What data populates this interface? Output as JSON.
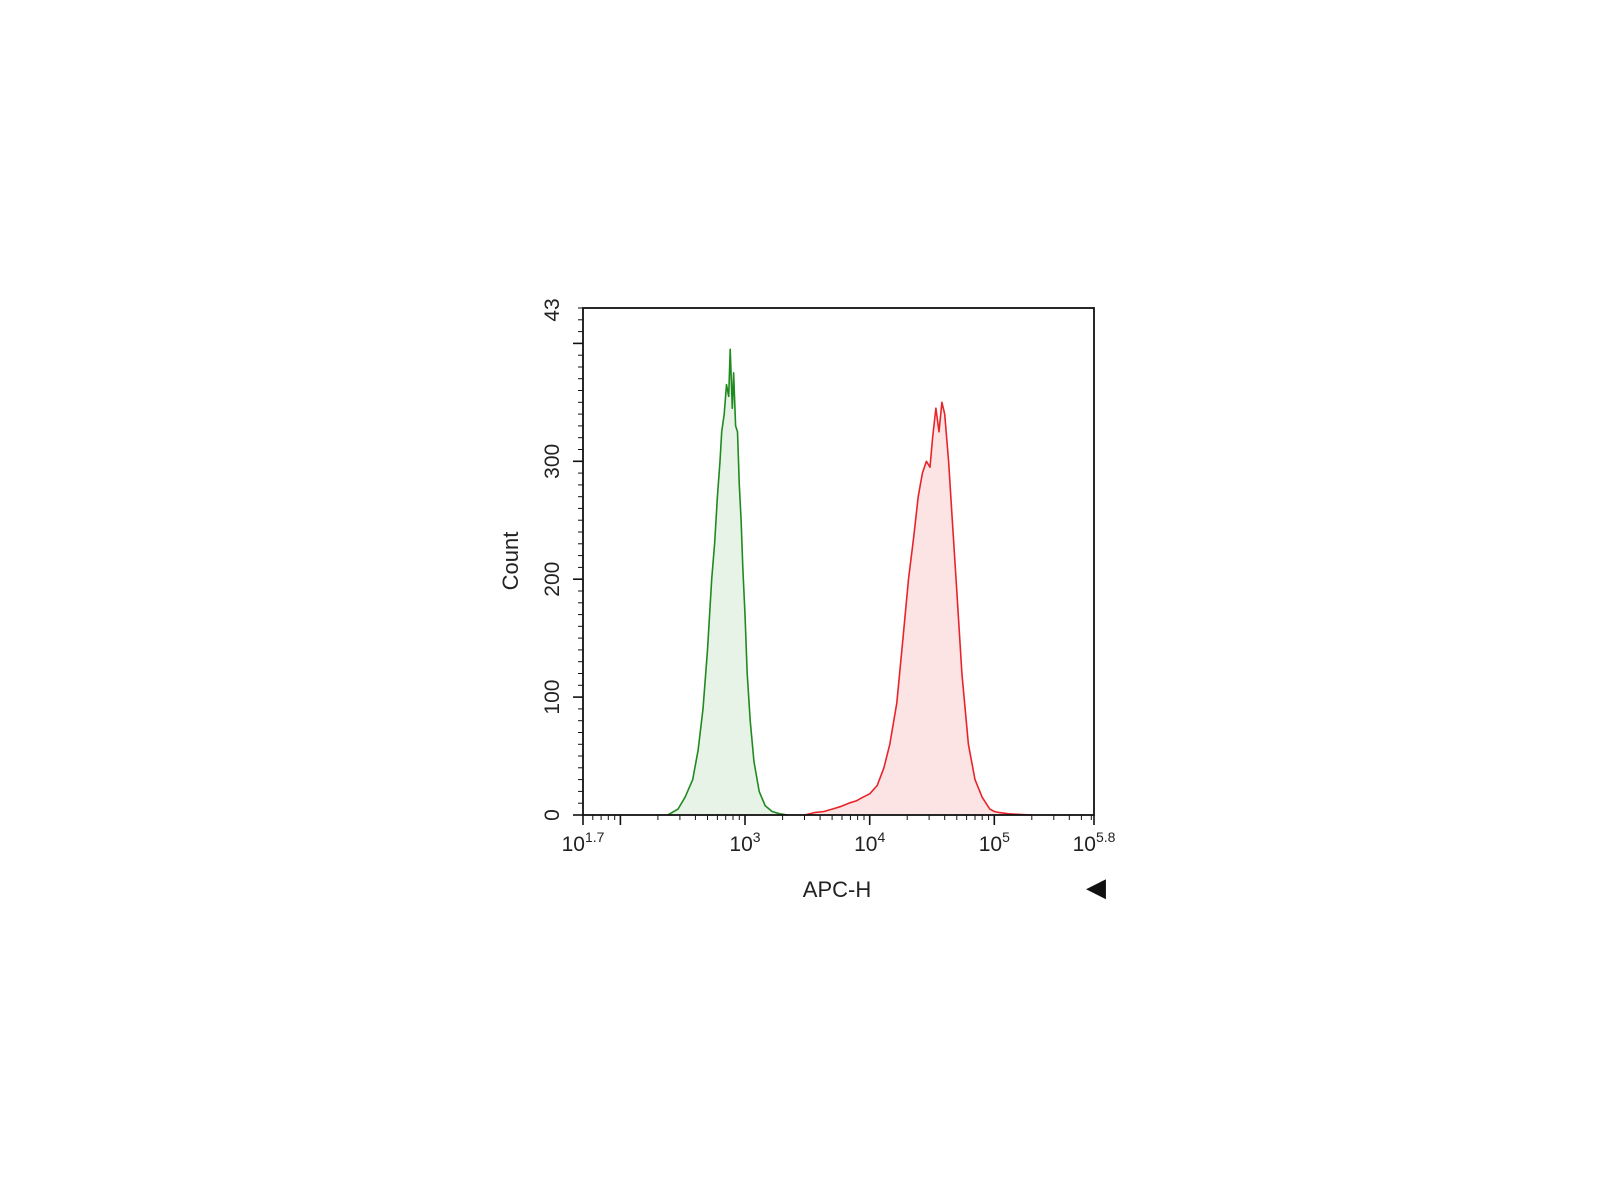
{
  "chart_data": {
    "type": "area",
    "title": "",
    "xlabel": "APC-H",
    "ylabel": "Count",
    "x_scale": "log10",
    "xlim": [
      50.1,
      631000
    ],
    "ylim": [
      0,
      430
    ],
    "y_top_label": "43",
    "x_ticks": [
      {
        "value": 50.1,
        "base": "10",
        "exp": "1.7"
      },
      {
        "value": 1000,
        "base": "10",
        "exp": "3"
      },
      {
        "value": 10000,
        "base": "10",
        "exp": "4"
      },
      {
        "value": 100000,
        "base": "10",
        "exp": "5"
      },
      {
        "value": 631000,
        "base": "10",
        "exp": "5.8"
      }
    ],
    "y_ticks": [
      {
        "value": 0,
        "label": "0"
      },
      {
        "value": 100,
        "label": "100"
      },
      {
        "value": 200,
        "label": "200"
      },
      {
        "value": 300,
        "label": "300"
      }
    ],
    "grid": false,
    "legend": "none",
    "series": [
      {
        "line_color": "#1f8a1f",
        "fill_color": "#e7f3e7",
        "x": [
          240,
          290,
          330,
          380,
          420,
          460,
          500,
          540,
          570,
          600,
          630,
          650,
          680,
          710,
          740,
          760,
          790,
          810,
          840,
          870,
          900,
          930,
          960,
          1000,
          1040,
          1100,
          1180,
          1300,
          1450,
          1650,
          1900,
          2200
        ],
        "y": [
          0,
          5,
          15,
          30,
          55,
          90,
          140,
          200,
          230,
          270,
          300,
          325,
          340,
          365,
          355,
          395,
          345,
          375,
          330,
          325,
          280,
          250,
          210,
          170,
          120,
          80,
          45,
          20,
          8,
          3,
          1,
          0
        ]
      },
      {
        "line_color": "#e8242a",
        "fill_color": "#fde4e4",
        "x": [
          3000,
          3600,
          4300,
          5000,
          5800,
          6800,
          7800,
          8800,
          10000,
          11500,
          13000,
          14500,
          16500,
          18500,
          20500,
          22500,
          24500,
          26500,
          28500,
          30500,
          32000,
          34000,
          36000,
          38000,
          40000,
          43000,
          46000,
          50000,
          55000,
          62000,
          70000,
          80000,
          92000,
          100000,
          110000,
          130000,
          160000,
          200000
        ],
        "y": [
          0,
          2,
          3,
          5,
          7,
          10,
          12,
          15,
          18,
          25,
          40,
          60,
          95,
          150,
          200,
          235,
          270,
          290,
          300,
          295,
          320,
          345,
          325,
          350,
          340,
          300,
          250,
          190,
          120,
          60,
          30,
          15,
          5,
          3,
          2,
          1,
          0.5,
          0
        ]
      }
    ]
  },
  "ui": {
    "arrow_glyph": "◀"
  }
}
